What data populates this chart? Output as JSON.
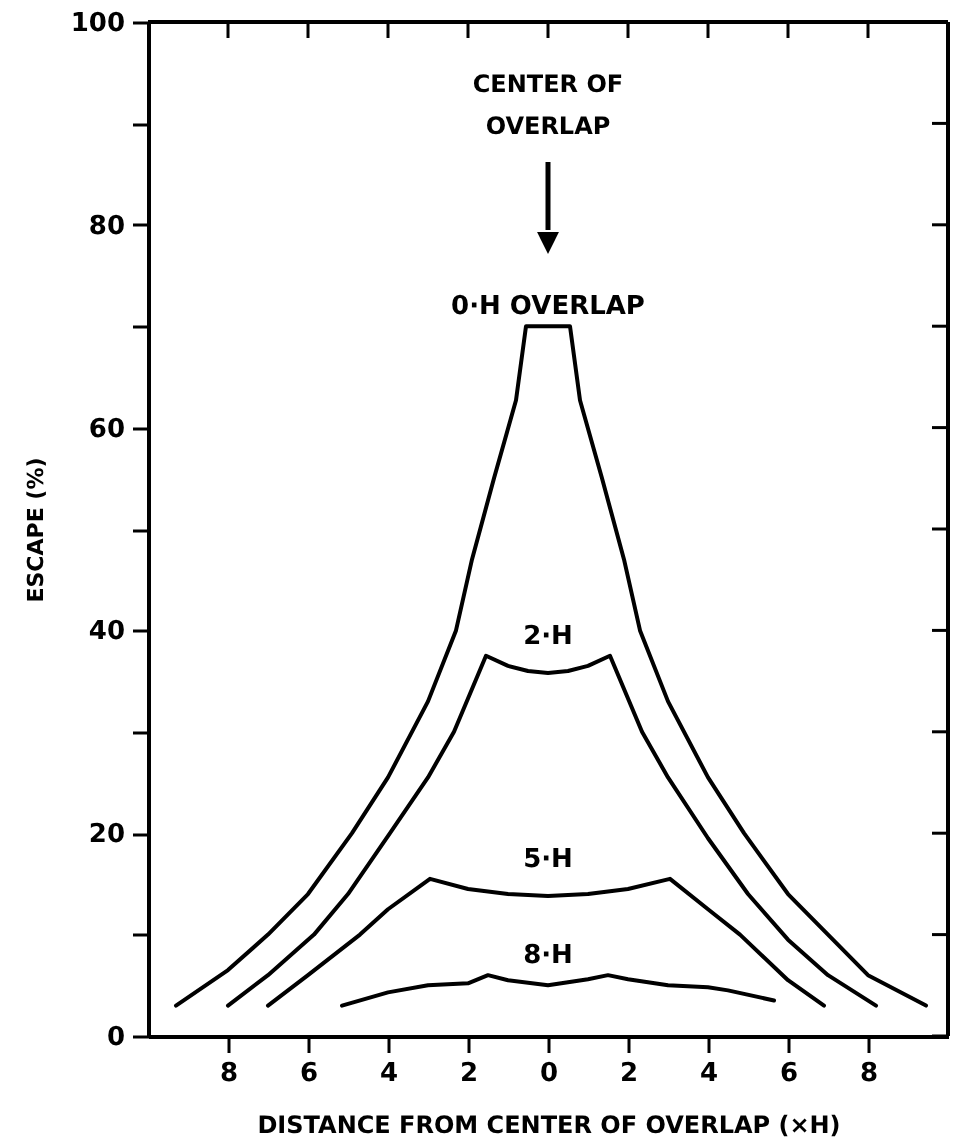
{
  "chart_data": {
    "type": "line",
    "xlabel": "DISTANCE FROM CENTER OF OVERLAP (×H)",
    "ylabel": "ESCAPE (%)",
    "xlim": [
      -10,
      10
    ],
    "xticks": [
      {
        "value": -8,
        "label": "8"
      },
      {
        "value": -6,
        "label": "6"
      },
      {
        "value": -4,
        "label": "4"
      },
      {
        "value": -2,
        "label": "2"
      },
      0,
      2,
      4,
      6,
      8
    ],
    "ylim": [
      0,
      100
    ],
    "yticks": [
      0,
      {
        "value": 10,
        "label": null
      },
      20,
      {
        "value": 30,
        "label": null
      },
      40,
      {
        "value": 50,
        "label": null
      },
      60,
      {
        "value": 70,
        "label": null
      },
      80,
      {
        "value": 90,
        "label": null
      },
      100
    ],
    "annotations": [
      "CENTER OF\nOVERLAP"
    ],
    "series": [
      {
        "name": "0·H OVERLAP",
        "color": "#000000",
        "x": [
          -9.3,
          -8,
          -7,
          -6,
          -4.9,
          -4,
          -3,
          -2.3,
          -1.9,
          -1.35,
          -0.8,
          -0.55,
          0.55,
          0.8,
          1.35,
          1.9,
          2.3,
          3,
          4,
          4.9,
          6,
          7,
          8,
          9.45
        ],
        "values": [
          3,
          6.5,
          10,
          14,
          20,
          25.5,
          33,
          40,
          47,
          55,
          62.7,
          70,
          70,
          62.7,
          55,
          47,
          40,
          33,
          25.5,
          20,
          14,
          10,
          6,
          3
        ]
      },
      {
        "name": "2·H",
        "color": "#000000",
        "x": [
          -8,
          -7,
          -5.85,
          -5,
          -3.95,
          -3,
          -2.35,
          -1.55,
          -1,
          -0.5,
          0,
          0.5,
          1,
          1.55,
          2.35,
          3,
          4,
          5,
          6,
          7,
          8.2
        ],
        "values": [
          3,
          6,
          10,
          14,
          20,
          25.5,
          30,
          37.5,
          36.5,
          36,
          35.8,
          36,
          36.5,
          37.5,
          30,
          25.5,
          19.5,
          14,
          9.5,
          6,
          3
        ]
      },
      {
        "name": "5·H",
        "color": "#000000",
        "x": [
          -7,
          -6,
          -4.7,
          -4,
          -2.95,
          -2,
          -1,
          0,
          1,
          2,
          3.05,
          4,
          4.8,
          6,
          6.9
        ],
        "values": [
          3,
          6,
          10,
          12.5,
          15.5,
          14.5,
          14,
          13.8,
          14,
          14.5,
          15.5,
          12.5,
          10,
          5.5,
          3
        ]
      },
      {
        "name": "8·H",
        "color": "#000000",
        "x": [
          -5.15,
          -4,
          -3,
          -2,
          -1.5,
          -1,
          0,
          1,
          1.5,
          2,
          3,
          4,
          4.5,
          5.65
        ],
        "values": [
          3,
          4.3,
          5,
          5.2,
          6,
          5.5,
          5,
          5.6,
          6,
          5.6,
          5,
          4.8,
          4.5,
          3.5
        ]
      }
    ]
  }
}
